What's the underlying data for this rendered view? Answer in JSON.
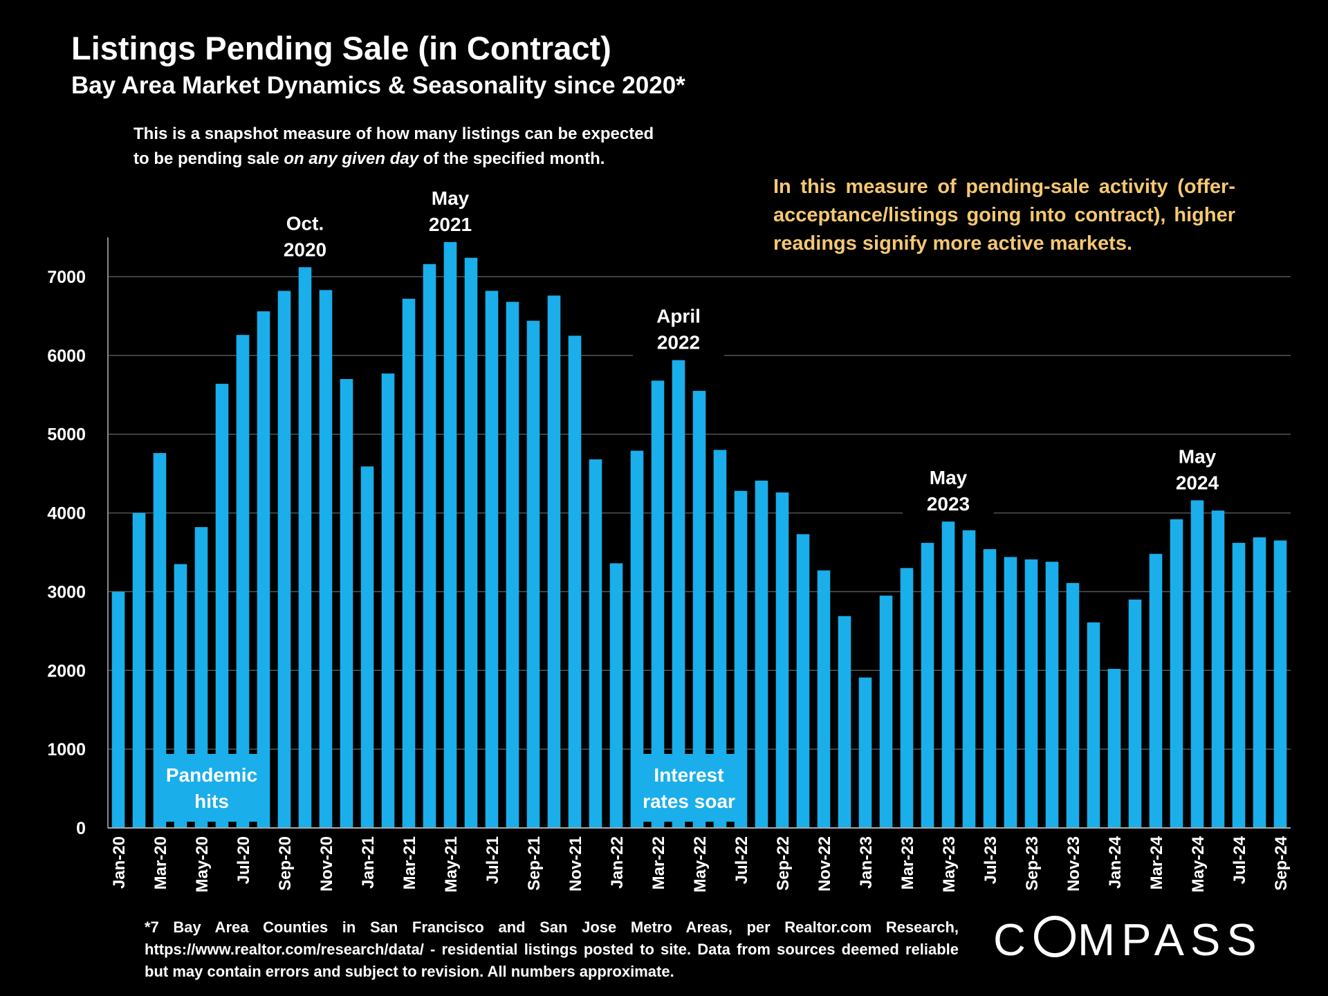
{
  "title": "Listings Pending Sale (in Contract)",
  "subtitle": "Bay Area Market Dynamics & Seasonality since 2020*",
  "description": {
    "line1": "This is a snapshot measure of how many listings can be expected",
    "line2_pre": "to be pending sale ",
    "line2_em": "on any given day",
    "line2_post": " of the specified month."
  },
  "note": "In this measure of pending-sale activity (offer-acceptance/listings going into contract), higher readings signify more active markets.",
  "footnote": "*7 Bay Area Counties in San Francisco and San Jose Metro Areas, per Realtor.com Research, https://www.realtor.com/research/data/ - residential listings posted to site.  Data from sources deemed reliable but may contain errors and subject to revision. All numbers approximate.",
  "logo": {
    "pre": "C",
    "post": "MPASS"
  },
  "colors": {
    "bar": "#1aaeea",
    "background": "#000000",
    "note": "#f5c871",
    "grid": "#555555"
  },
  "chart_data": {
    "type": "bar",
    "title": "Listings Pending Sale (in Contract)",
    "ylim": [
      0,
      7500
    ],
    "yticks": [
      0,
      1000,
      2000,
      3000,
      4000,
      5000,
      6000,
      7000
    ],
    "grid": true,
    "categories": [
      "Jan-20",
      "Feb-20",
      "Mar-20",
      "Apr-20",
      "May-20",
      "Jun-20",
      "Jul-20",
      "Aug-20",
      "Sep-20",
      "Oct-20",
      "Nov-20",
      "Dec-20",
      "Jan-21",
      "Feb-21",
      "Mar-21",
      "Apr-21",
      "May-21",
      "Jun-21",
      "Jul-21",
      "Aug-21",
      "Sep-21",
      "Oct-21",
      "Nov-21",
      "Dec-21",
      "Jan-22",
      "Feb-22",
      "Mar-22",
      "Apr-22",
      "May-22",
      "Jun-22",
      "Jul-22",
      "Aug-22",
      "Sep-22",
      "Oct-22",
      "Nov-22",
      "Dec-22",
      "Jan-23",
      "Feb-23",
      "Mar-23",
      "Apr-23",
      "May-23",
      "Jun-23",
      "Jul-23",
      "Aug-23",
      "Sep-23",
      "Oct-23",
      "Nov-23",
      "Dec-23",
      "Jan-24",
      "Feb-24",
      "Mar-24",
      "Apr-24",
      "May-24",
      "Jun-24",
      "Jul-24",
      "Aug-24",
      "Sep-24"
    ],
    "xtick_labels": [
      "Jan-20",
      "Mar-20",
      "May-20",
      "Jul-20",
      "Sep-20",
      "Nov-20",
      "Jan-21",
      "Mar-21",
      "May-21",
      "Jul-21",
      "Sep-21",
      "Nov-21",
      "Jan-22",
      "Mar-22",
      "May-22",
      "Jul-22",
      "Sep-22",
      "Nov-22",
      "Jan-23",
      "Mar-23",
      "May-23",
      "Jul-23",
      "Sep-23",
      "Nov-23",
      "Jan-24",
      "Mar-24",
      "May-24",
      "Jul-24",
      "Sep-24"
    ],
    "values": [
      3000,
      4000,
      4760,
      3350,
      3820,
      5640,
      6260,
      6560,
      6820,
      7120,
      6830,
      5700,
      4590,
      5770,
      6720,
      7160,
      7440,
      7240,
      6820,
      6680,
      6440,
      6760,
      6250,
      4680,
      3360,
      4790,
      5680,
      5940,
      5550,
      4800,
      4280,
      4410,
      4260,
      3730,
      3270,
      2690,
      1910,
      2950,
      3300,
      3620,
      3890,
      3780,
      3540,
      3440,
      3410,
      3380,
      3110,
      2610,
      2020,
      2900,
      3480,
      3920,
      4160,
      4030,
      3620,
      3690,
      3650
    ],
    "annotations": [
      {
        "index": 9,
        "lines": [
          "Oct.",
          "2020"
        ]
      },
      {
        "index": 16,
        "lines": [
          "May",
          "2021"
        ]
      },
      {
        "index": 27,
        "lines": [
          "April",
          "2022"
        ]
      },
      {
        "index": 40,
        "lines": [
          "May",
          "2023"
        ]
      },
      {
        "index": 52,
        "lines": [
          "May",
          "2024"
        ]
      }
    ],
    "callouts": [
      {
        "lines": [
          "Pandemic",
          "hits"
        ],
        "from_index": 2,
        "to_index": 7
      },
      {
        "lines": [
          "Interest",
          "rates soar"
        ],
        "from_index": 25,
        "to_index": 30
      }
    ]
  }
}
